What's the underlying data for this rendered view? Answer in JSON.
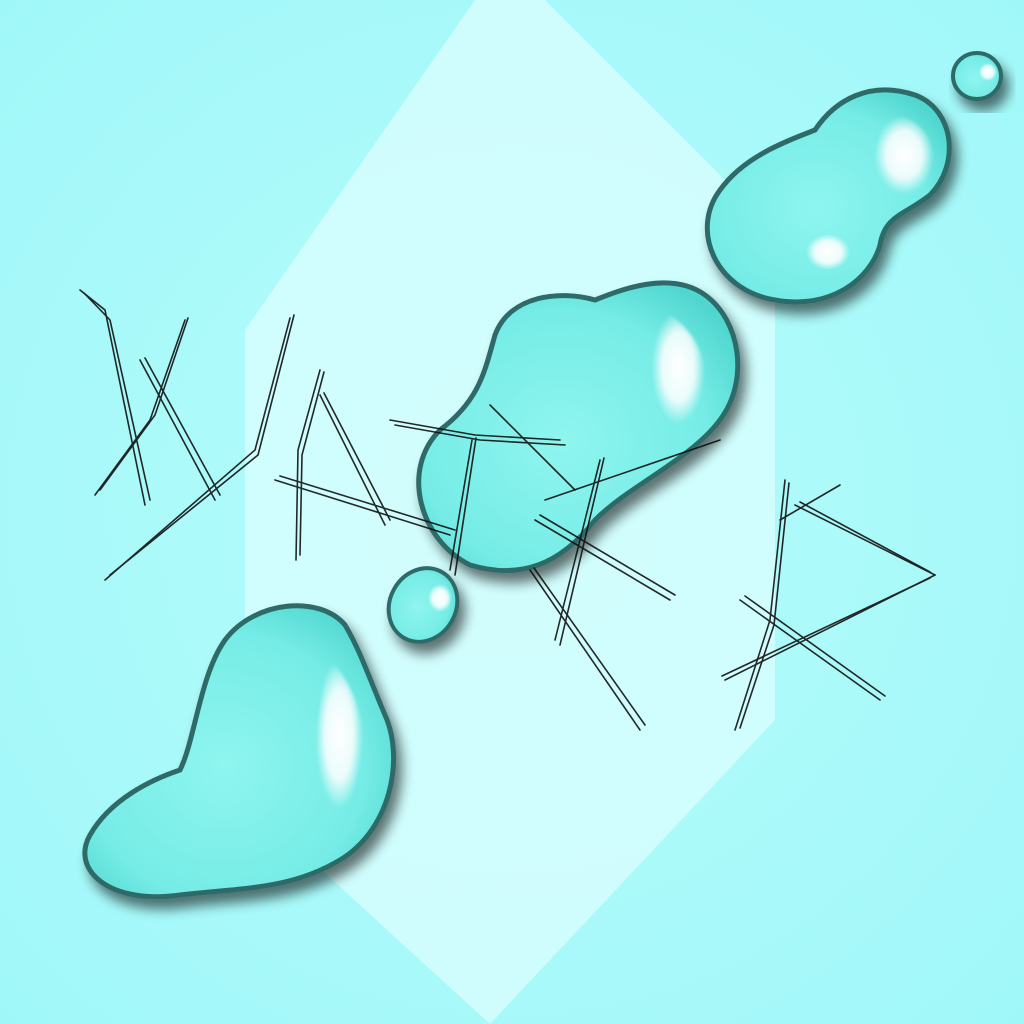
{
  "artwork": {
    "hand_lettering": "WATER",
    "colors": {
      "background": "#a6fbfb",
      "diamond": "#d6fdfd",
      "drop_fill": "#7ef0ea",
      "drop_edge": "#2f6b68",
      "drop_rim": "#4fd6cf",
      "highlight": "#ffffff",
      "shadow": "#000000",
      "scribble": "#111111"
    }
  }
}
